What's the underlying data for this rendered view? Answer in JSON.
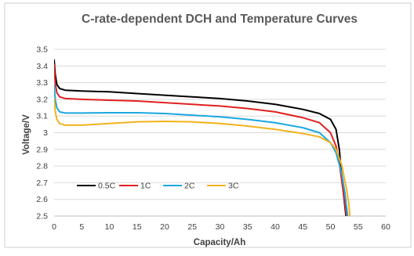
{
  "chart_data": {
    "type": "line",
    "title": "C-rate-dependent DCH and Temperature Curves",
    "xlabel": "Capacity/Ah",
    "ylabel": "Voltage/V",
    "xlim": [
      0,
      60
    ],
    "ylim": [
      2.5,
      3.5
    ],
    "x_ticks": [
      "0",
      "5",
      "10",
      "15",
      "20",
      "25",
      "30",
      "35",
      "40",
      "45",
      "50",
      "55",
      "60"
    ],
    "y_ticks": [
      "2.5",
      "2.6",
      "2.7",
      "2.8",
      "2.9",
      "3",
      "3.1",
      "3.2",
      "3.3",
      "3.4",
      "3.5"
    ],
    "grid": "horizontal",
    "legend_position": "bottom-left inside plot",
    "series": [
      {
        "name": "0.5C",
        "color": "#000000",
        "points": [
          [
            0,
            3.44
          ],
          [
            0.2,
            3.35
          ],
          [
            0.5,
            3.29
          ],
          [
            1,
            3.265
          ],
          [
            2,
            3.255
          ],
          [
            5,
            3.25
          ],
          [
            10,
            3.245
          ],
          [
            15,
            3.235
          ],
          [
            20,
            3.225
          ],
          [
            25,
            3.215
          ],
          [
            30,
            3.205
          ],
          [
            35,
            3.19
          ],
          [
            40,
            3.17
          ],
          [
            45,
            3.14
          ],
          [
            48,
            3.115
          ],
          [
            50,
            3.08
          ],
          [
            51,
            3.02
          ],
          [
            51.6,
            2.9
          ],
          [
            52,
            2.75
          ],
          [
            52.4,
            2.62
          ],
          [
            52.8,
            2.5
          ]
        ]
      },
      {
        "name": "1C",
        "color": "#e02020",
        "points": [
          [
            0,
            3.41
          ],
          [
            0.2,
            3.3
          ],
          [
            0.5,
            3.24
          ],
          [
            1,
            3.215
          ],
          [
            2,
            3.205
          ],
          [
            5,
            3.2
          ],
          [
            10,
            3.195
          ],
          [
            15,
            3.19
          ],
          [
            20,
            3.18
          ],
          [
            25,
            3.17
          ],
          [
            30,
            3.16
          ],
          [
            35,
            3.145
          ],
          [
            40,
            3.125
          ],
          [
            45,
            3.09
          ],
          [
            48,
            3.06
          ],
          [
            50,
            3.0
          ],
          [
            51,
            2.92
          ],
          [
            51.6,
            2.82
          ],
          [
            52,
            2.72
          ],
          [
            52.5,
            2.6
          ],
          [
            52.9,
            2.5
          ]
        ]
      },
      {
        "name": "2C",
        "color": "#1aa7e0",
        "points": [
          [
            0,
            3.29
          ],
          [
            0.2,
            3.2
          ],
          [
            0.5,
            3.15
          ],
          [
            1,
            3.125
          ],
          [
            2,
            3.118
          ],
          [
            5,
            3.118
          ],
          [
            10,
            3.12
          ],
          [
            15,
            3.12
          ],
          [
            20,
            3.115
          ],
          [
            25,
            3.105
          ],
          [
            30,
            3.095
          ],
          [
            35,
            3.08
          ],
          [
            40,
            3.06
          ],
          [
            45,
            3.03
          ],
          [
            48,
            3.0
          ],
          [
            50,
            2.94
          ],
          [
            51,
            2.88
          ],
          [
            52,
            2.76
          ],
          [
            52.6,
            2.64
          ],
          [
            53.1,
            2.5
          ]
        ]
      },
      {
        "name": "3C",
        "color": "#f2b21c",
        "points": [
          [
            0,
            3.21
          ],
          [
            0.2,
            3.13
          ],
          [
            0.5,
            3.08
          ],
          [
            1,
            3.055
          ],
          [
            2,
            3.045
          ],
          [
            5,
            3.045
          ],
          [
            10,
            3.055
          ],
          [
            15,
            3.065
          ],
          [
            20,
            3.068
          ],
          [
            25,
            3.065
          ],
          [
            30,
            3.055
          ],
          [
            35,
            3.04
          ],
          [
            40,
            3.02
          ],
          [
            45,
            2.995
          ],
          [
            48,
            2.975
          ],
          [
            50,
            2.94
          ],
          [
            51,
            2.9
          ],
          [
            52,
            2.81
          ],
          [
            52.8,
            2.68
          ],
          [
            53.3,
            2.58
          ],
          [
            53.5,
            2.5
          ]
        ]
      }
    ]
  }
}
